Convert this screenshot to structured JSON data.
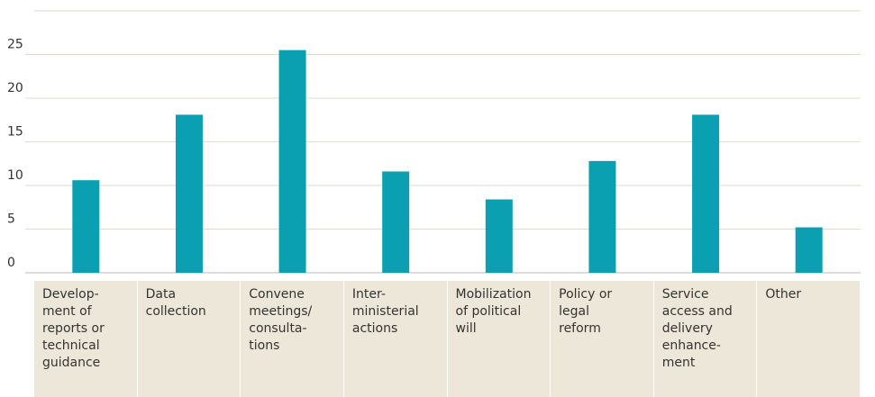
{
  "chart_data": {
    "type": "bar",
    "categories": [
      "Develop-\nment of\nreports or\ntechnical\nguidance",
      "Data\ncollection",
      "Convene\nmeetings/\nconsulta-\ntions",
      "Inter-\nministerial\nactions",
      "Mobilization\nof political\nwill",
      "Policy or\nlegal\nreform",
      "Service\naccess and\ndelivery\nenhance-\nment",
      "Other"
    ],
    "values": [
      10.6,
      18.1,
      25.5,
      11.6,
      8.4,
      12.8,
      18.1,
      5.2
    ],
    "color": "#0aa0b2",
    "ylim": [
      0,
      30
    ],
    "yticks": [
      0,
      5,
      10,
      15,
      20,
      25
    ],
    "grid": true
  }
}
